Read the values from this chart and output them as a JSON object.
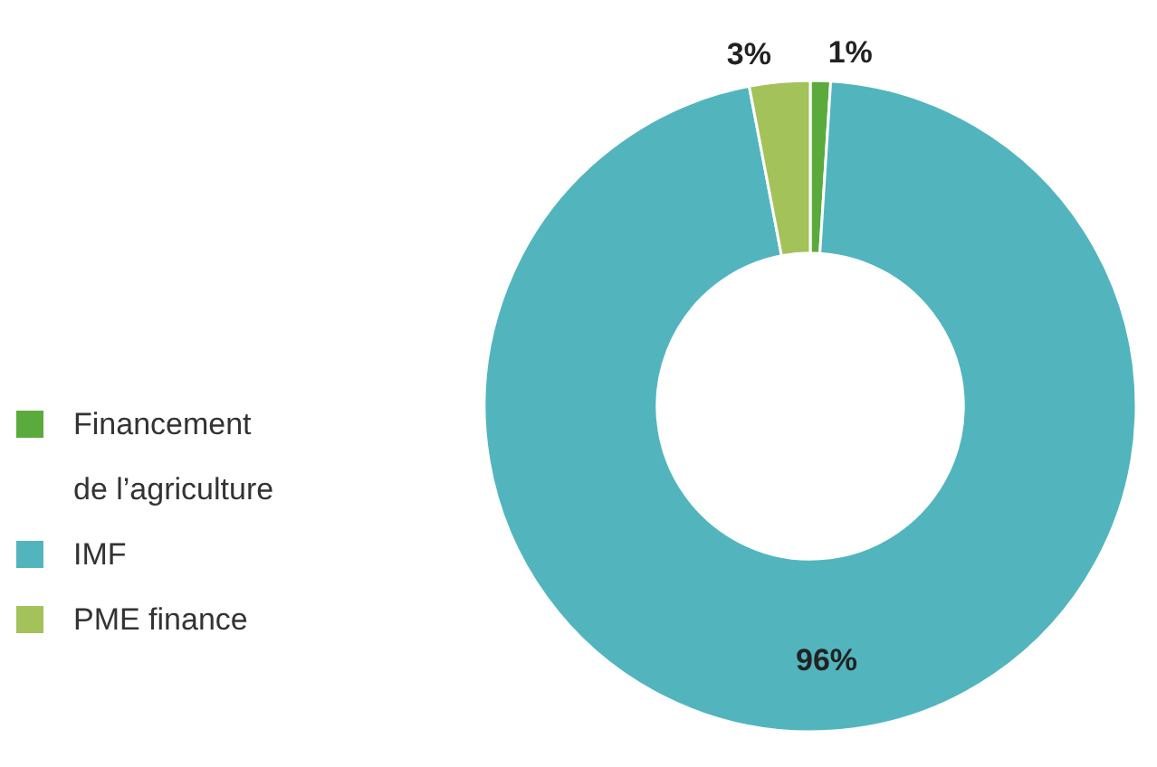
{
  "chart_data": {
    "type": "donut",
    "categories": [
      "Financement de l’agriculture",
      "IMF",
      "PME finance"
    ],
    "values": [
      1,
      96,
      3
    ],
    "colors": [
      "#5aab3c",
      "#52b5be",
      "#a3c25a"
    ],
    "value_labels": [
      "1%",
      "96%",
      "3%"
    ],
    "legend": "left"
  }
}
